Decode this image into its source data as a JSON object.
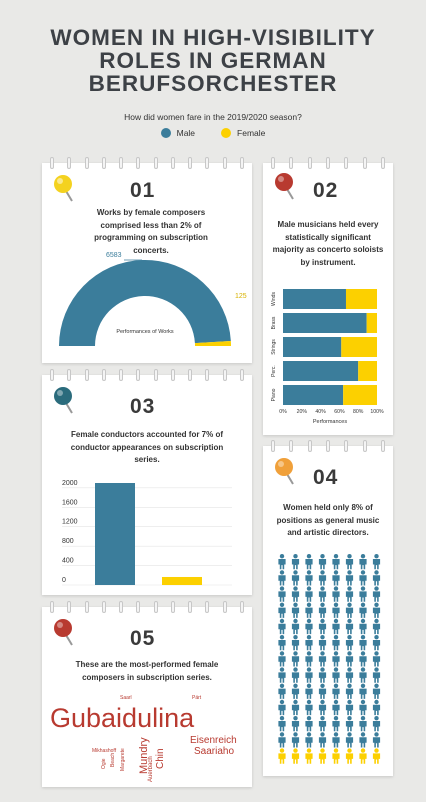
{
  "title_lines": [
    "WOMEN IN HIGH-VISIBILITY",
    "ROLES IN GERMAN",
    "BERUFSORCHESTER"
  ],
  "subtitle": "How did women fare in the 2019/2020 season?",
  "legend": {
    "male": "Male",
    "female": "Female"
  },
  "colors": {
    "male": "#3b7d9b",
    "female": "#fcd000",
    "pin_yellow": "#f4d21f",
    "pin_red": "#b83a30",
    "pin_teal": "#2a6b7c",
    "pin_orange": "#f0a03a"
  },
  "cards": {
    "c1": {
      "num": "01",
      "text": "Works by female composers comprised less than 2% of programming on subscription concerts."
    },
    "c2": {
      "num": "02",
      "text": "Male musicians held every statistically significant majority as concerto soloists by instrument."
    },
    "c3": {
      "num": "03",
      "text": "Female conductors accounted for 7% of conductor appearances on subscription series."
    },
    "c4": {
      "num": "04",
      "text": "Women held only 8% of positions as general music and artistic directors."
    },
    "c5": {
      "num": "05",
      "text": "These are the most-performed female composers in subscription series."
    }
  },
  "chart_data": [
    {
      "type": "pie",
      "title": "Performances of Works",
      "categories": [
        "Male",
        "Female"
      ],
      "values": [
        6583,
        125
      ],
      "labels": [
        "6583",
        "125"
      ]
    },
    {
      "type": "bar",
      "orientation": "horizontal",
      "stacked": "percent",
      "categories": [
        "Winds",
        "Brass",
        "Strings",
        "Perc.",
        "Piano"
      ],
      "series": [
        {
          "name": "Male",
          "values": [
            67,
            89,
            62,
            80,
            64
          ]
        },
        {
          "name": "Female",
          "values": [
            33,
            11,
            38,
            20,
            36
          ]
        }
      ],
      "xlabel": "Performances",
      "xticks": [
        "0%",
        "20%",
        "40%",
        "60%",
        "80%",
        "100%"
      ],
      "xlim": [
        0,
        100
      ]
    },
    {
      "type": "bar",
      "categories": [
        "Male",
        "Female"
      ],
      "values": [
        2100,
        165
      ],
      "ylim": [
        0,
        2100
      ],
      "yticks": [
        "0",
        "400",
        "800",
        "1200",
        "1600",
        "2000"
      ]
    },
    {
      "type": "pictogram",
      "rows": 13,
      "cols": 8,
      "male": 96,
      "female": 8
    },
    {
      "type": "wordcloud",
      "words": [
        "Gubaidulina",
        "Eisenreich",
        "Saariaho",
        "Mundry",
        "Chin",
        "Auerbach",
        "Mikhashoff",
        "Ogie",
        "Beach",
        "Margarete",
        "Saarl",
        "Pärt"
      ]
    }
  ]
}
